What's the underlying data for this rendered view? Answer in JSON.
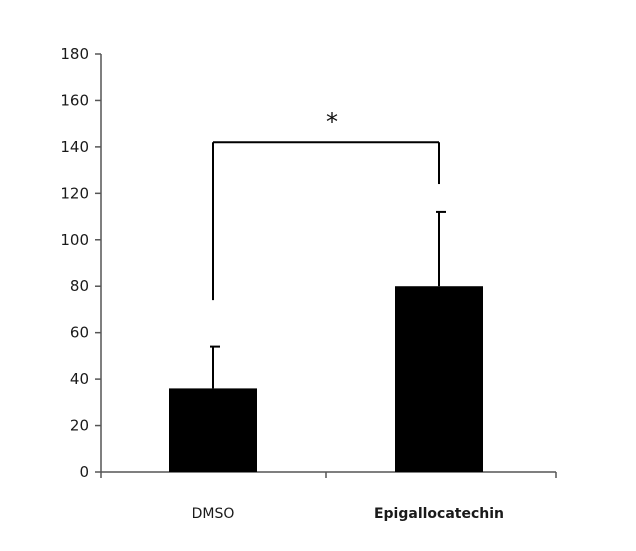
{
  "chart_data": {
    "type": "bar",
    "title": "",
    "xlabel": "",
    "ylabel": "",
    "categories": [
      "DMSO",
      "Epigallocatechin"
    ],
    "values": [
      36,
      80
    ],
    "error_bars": [
      18,
      32
    ],
    "ylim": [
      0,
      180
    ],
    "y_ticks": [
      0,
      20,
      40,
      60,
      80,
      100,
      120,
      140,
      160,
      180
    ],
    "y_tick_labels": [
      "0",
      "20",
      "40",
      "60",
      "80",
      "100",
      "120",
      "140",
      "160",
      "180"
    ],
    "grid": false,
    "legend": "none",
    "bar_color": "#000000",
    "annotations": [
      {
        "text": "*",
        "between": [
          "DMSO",
          "Epigallocatechin"
        ],
        "bracket_y": 142,
        "left_leg_bottom": 74,
        "right_leg_bottom": 124
      }
    ]
  }
}
